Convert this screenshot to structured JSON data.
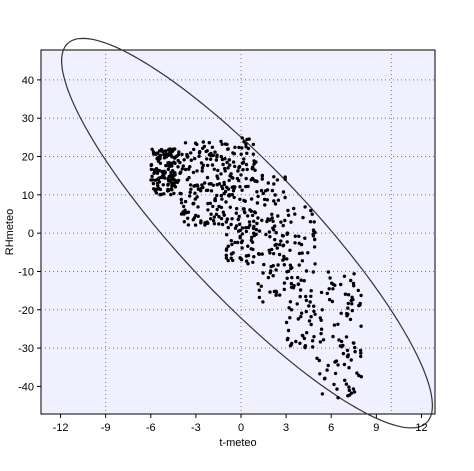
{
  "chart_data": {
    "type": "scatter",
    "title": "",
    "xlabel": "t-meteo",
    "ylabel": "RHmeteo",
    "xlim": [
      -13.3,
      12.9
    ],
    "ylim": [
      -47.2,
      47.8
    ],
    "xticks": [
      -12,
      -9,
      -6,
      -3,
      0,
      3,
      6,
      9,
      12
    ],
    "yticks": [
      -40,
      -30,
      -20,
      -10,
      0,
      10,
      20,
      30,
      40
    ],
    "grid_x": [
      -9,
      0,
      10
    ],
    "grid_y": [
      -30,
      -20,
      -10,
      0,
      10,
      20,
      30,
      40
    ],
    "grid": "dotted",
    "plot_background": "#f0f0fe",
    "point_color": "#000000",
    "ellipse": {
      "center_x": 0.4,
      "center_y": 0,
      "semi_major": 52,
      "semi_minor": 5.6,
      "slope": -4.6
    },
    "cluster_bands": [
      {
        "x": [
          -6,
          -4
        ],
        "y_range": [
          10,
          22
        ],
        "density": "high"
      },
      {
        "x": [
          -4,
          -1
        ],
        "y_range": [
          2,
          24
        ],
        "density": "high"
      },
      {
        "x": [
          -1,
          1
        ],
        "y_range": [
          -8,
          26
        ],
        "density": "high"
      },
      {
        "x": [
          1,
          3
        ],
        "y_range": [
          -18,
          16
        ],
        "density": "medium"
      },
      {
        "x": [
          3,
          5
        ],
        "y_range": [
          -30,
          8
        ],
        "density": "medium"
      },
      {
        "x": [
          5,
          8
        ],
        "y_range": [
          -43,
          -10
        ],
        "density": "medium"
      }
    ]
  }
}
